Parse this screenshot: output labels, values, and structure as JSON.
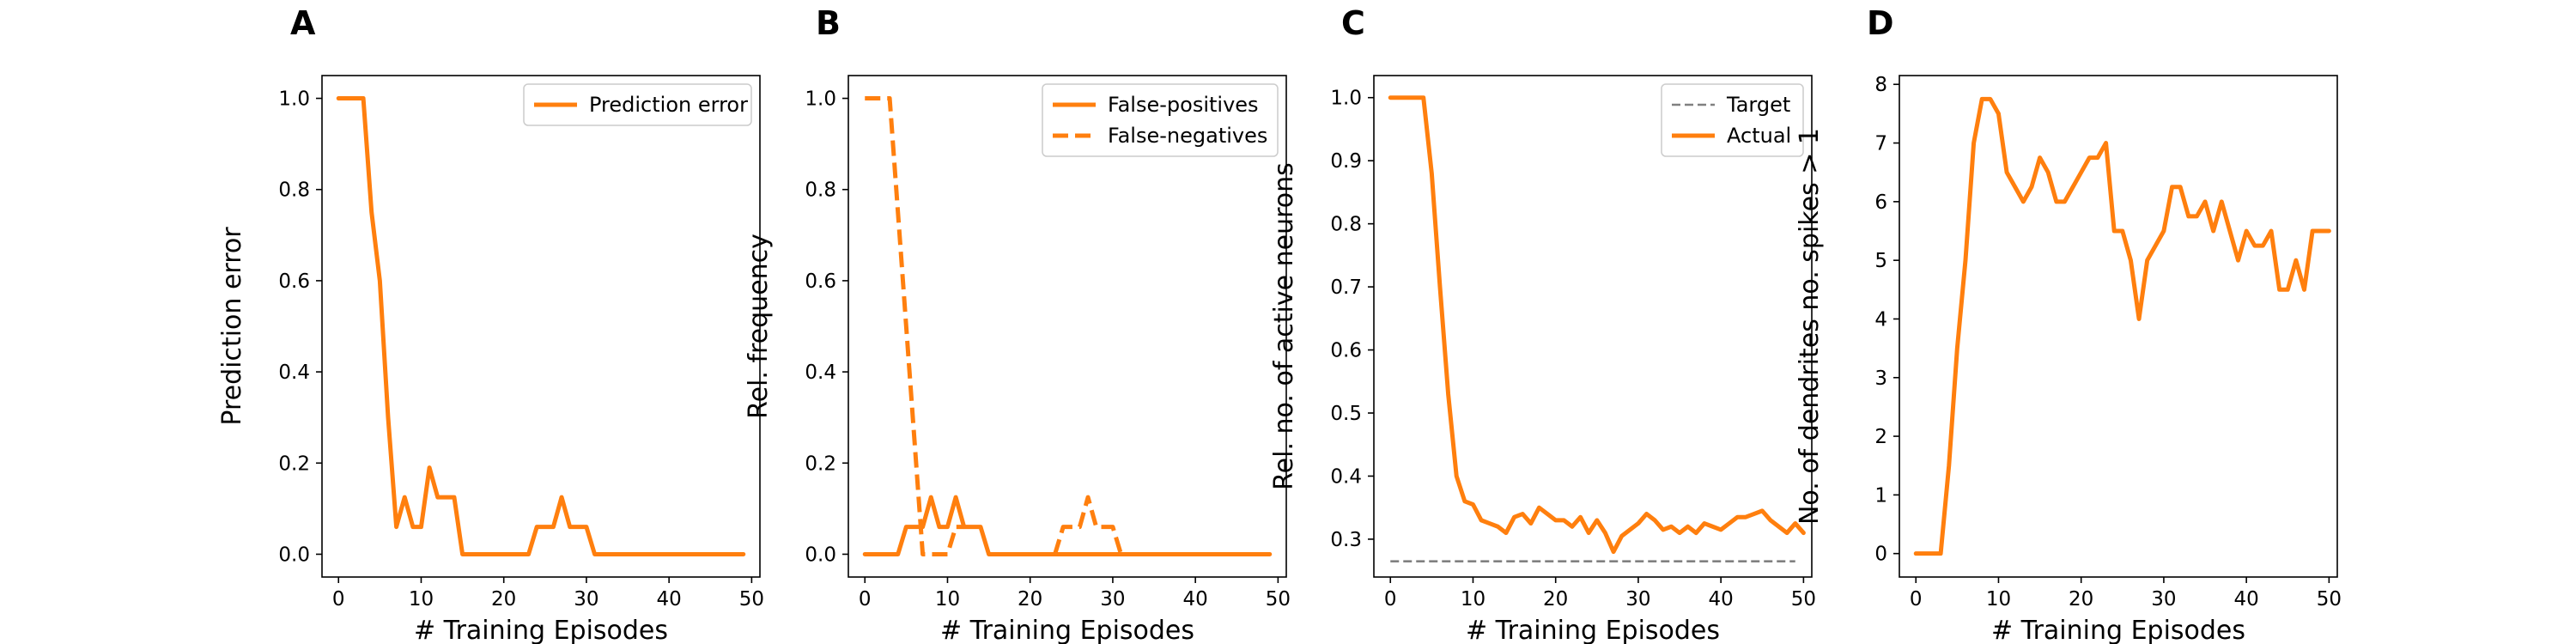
{
  "chart_data": [
    {
      "type": "line",
      "letter": "A",
      "xlabel": "# Training Episodes",
      "ylabel": "Prediction error",
      "xlim": [
        -2,
        51
      ],
      "ylim": [
        -0.05,
        1.05
      ],
      "xticks": [
        0,
        10,
        20,
        30,
        40,
        50
      ],
      "xtick_labels": [
        "0",
        "10",
        "20",
        "30",
        "40",
        "50"
      ],
      "yticks": [
        0,
        0.2,
        0.4,
        0.6,
        0.8,
        1.0
      ],
      "ytick_labels": [
        "0.0",
        "0.2",
        "0.4",
        "0.6",
        "0.8",
        "1.0"
      ],
      "legend": "top-right",
      "series": [
        {
          "name": "Prediction error",
          "style": "solid",
          "color": "#ff7f0e",
          "points": [
            [
              0,
              1
            ],
            [
              1,
              1
            ],
            [
              2,
              1
            ],
            [
              3,
              1
            ],
            [
              4,
              0.75
            ],
            [
              5,
              0.6
            ],
            [
              6,
              0.3
            ],
            [
              7,
              0.06
            ],
            [
              8,
              0.125
            ],
            [
              9,
              0.06
            ],
            [
              10,
              0.06
            ],
            [
              11,
              0.19
            ],
            [
              12,
              0.125
            ],
            [
              13,
              0.125
            ],
            [
              14,
              0.125
            ],
            [
              15,
              0
            ],
            [
              16,
              0
            ],
            [
              17,
              0
            ],
            [
              18,
              0
            ],
            [
              19,
              0
            ],
            [
              20,
              0
            ],
            [
              21,
              0
            ],
            [
              22,
              0
            ],
            [
              23,
              0
            ],
            [
              24,
              0.06
            ],
            [
              25,
              0.06
            ],
            [
              26,
              0.06
            ],
            [
              27,
              0.125
            ],
            [
              28,
              0.06
            ],
            [
              29,
              0.06
            ],
            [
              30,
              0.06
            ],
            [
              31,
              0
            ],
            [
              32,
              0
            ],
            [
              33,
              0
            ],
            [
              34,
              0
            ],
            [
              35,
              0
            ],
            [
              36,
              0
            ],
            [
              37,
              0
            ],
            [
              38,
              0
            ],
            [
              39,
              0
            ],
            [
              40,
              0
            ],
            [
              41,
              0
            ],
            [
              42,
              0
            ],
            [
              43,
              0
            ],
            [
              44,
              0
            ],
            [
              45,
              0
            ],
            [
              46,
              0
            ],
            [
              47,
              0
            ],
            [
              48,
              0
            ],
            [
              49,
              0
            ]
          ]
        }
      ]
    },
    {
      "type": "line",
      "letter": "B",
      "xlabel": "# Training Episodes",
      "ylabel": "Rel. frequency",
      "xlim": [
        -2,
        51
      ],
      "ylim": [
        -0.05,
        1.05
      ],
      "xticks": [
        0,
        10,
        20,
        30,
        40,
        50
      ],
      "xtick_labels": [
        "0",
        "10",
        "20",
        "30",
        "40",
        "50"
      ],
      "yticks": [
        0,
        0.2,
        0.4,
        0.6,
        0.8,
        1.0
      ],
      "ytick_labels": [
        "0.0",
        "0.2",
        "0.4",
        "0.6",
        "0.8",
        "1.0"
      ],
      "legend": "top-right",
      "series": [
        {
          "name": "False-positives",
          "style": "solid",
          "color": "#ff7f0e",
          "points": [
            [
              0,
              0
            ],
            [
              1,
              0
            ],
            [
              2,
              0
            ],
            [
              3,
              0
            ],
            [
              4,
              0
            ],
            [
              5,
              0.06
            ],
            [
              6,
              0.06
            ],
            [
              7,
              0.06
            ],
            [
              8,
              0.125
            ],
            [
              9,
              0.06
            ],
            [
              10,
              0.06
            ],
            [
              11,
              0.125
            ],
            [
              12,
              0.06
            ],
            [
              13,
              0.06
            ],
            [
              14,
              0.06
            ],
            [
              15,
              0
            ],
            [
              16,
              0
            ],
            [
              17,
              0
            ],
            [
              18,
              0
            ],
            [
              19,
              0
            ],
            [
              20,
              0
            ],
            [
              21,
              0
            ],
            [
              22,
              0
            ],
            [
              23,
              0
            ],
            [
              24,
              0
            ],
            [
              25,
              0
            ],
            [
              26,
              0
            ],
            [
              27,
              0
            ],
            [
              28,
              0
            ],
            [
              29,
              0
            ],
            [
              30,
              0
            ],
            [
              31,
              0
            ],
            [
              32,
              0
            ],
            [
              33,
              0
            ],
            [
              34,
              0
            ],
            [
              35,
              0
            ],
            [
              36,
              0
            ],
            [
              37,
              0
            ],
            [
              38,
              0
            ],
            [
              39,
              0
            ],
            [
              40,
              0
            ],
            [
              41,
              0
            ],
            [
              42,
              0
            ],
            [
              43,
              0
            ],
            [
              44,
              0
            ],
            [
              45,
              0
            ],
            [
              46,
              0
            ],
            [
              47,
              0
            ],
            [
              48,
              0
            ],
            [
              49,
              0
            ]
          ]
        },
        {
          "name": "False-negatives",
          "style": "dashed",
          "color": "#ff7f0e",
          "points": [
            [
              0,
              1
            ],
            [
              1,
              1
            ],
            [
              2,
              1
            ],
            [
              3,
              1
            ],
            [
              4,
              0.75
            ],
            [
              5,
              0.5
            ],
            [
              6,
              0.25
            ],
            [
              7,
              0
            ],
            [
              8,
              0
            ],
            [
              9,
              0
            ],
            [
              10,
              0
            ],
            [
              11,
              0.06
            ],
            [
              12,
              0.06
            ]
          ],
          "segments": [
            [
              23,
              0
            ],
            [
              24,
              0.06
            ],
            [
              25,
              0.06
            ],
            [
              26,
              0.06
            ],
            [
              27,
              0.125
            ],
            [
              28,
              0.06
            ],
            [
              29,
              0.06
            ],
            [
              30,
              0.06
            ],
            [
              31,
              0
            ]
          ]
        }
      ]
    },
    {
      "type": "line",
      "letter": "C",
      "xlabel": "# Training Episodes",
      "ylabel": "Rel. no. of active neurons",
      "xlim": [
        -2,
        51
      ],
      "ylim": [
        0.24,
        1.035
      ],
      "xticks": [
        0,
        10,
        20,
        30,
        40,
        50
      ],
      "xtick_labels": [
        "0",
        "10",
        "20",
        "30",
        "40",
        "50"
      ],
      "yticks": [
        0.3,
        0.4,
        0.5,
        0.6,
        0.7,
        0.8,
        0.9,
        1.0
      ],
      "ytick_labels": [
        "0.3",
        "0.4",
        "0.5",
        "0.6",
        "0.7",
        "0.8",
        "0.9",
        "1.0"
      ],
      "legend": "top-right",
      "series": [
        {
          "name": "Target",
          "style": "dashed-thin",
          "color": "#808080",
          "points": [
            [
              0,
              0.265
            ],
            [
              49,
              0.265
            ]
          ]
        },
        {
          "name": "Actual",
          "style": "solid",
          "color": "#ff7f0e",
          "points": [
            [
              0,
              1
            ],
            [
              1,
              1
            ],
            [
              2,
              1
            ],
            [
              3,
              1
            ],
            [
              4,
              1
            ],
            [
              5,
              0.88
            ],
            [
              6,
              0.7
            ],
            [
              7,
              0.53
            ],
            [
              8,
              0.4
            ],
            [
              9,
              0.36
            ],
            [
              10,
              0.355
            ],
            [
              11,
              0.33
            ],
            [
              12,
              0.325
            ],
            [
              13,
              0.32
            ],
            [
              14,
              0.31
            ],
            [
              15,
              0.335
            ],
            [
              16,
              0.34
            ],
            [
              17,
              0.325
            ],
            [
              18,
              0.35
            ],
            [
              19,
              0.34
            ],
            [
              20,
              0.33
            ],
            [
              21,
              0.33
            ],
            [
              22,
              0.32
            ],
            [
              23,
              0.335
            ],
            [
              24,
              0.31
            ],
            [
              25,
              0.33
            ],
            [
              26,
              0.31
            ],
            [
              27,
              0.28
            ],
            [
              28,
              0.305
            ],
            [
              29,
              0.315
            ],
            [
              30,
              0.325
            ],
            [
              31,
              0.34
            ],
            [
              32,
              0.33
            ],
            [
              33,
              0.315
            ],
            [
              34,
              0.32
            ],
            [
              35,
              0.31
            ],
            [
              36,
              0.32
            ],
            [
              37,
              0.31
            ],
            [
              38,
              0.325
            ],
            [
              39,
              0.32
            ],
            [
              40,
              0.315
            ],
            [
              41,
              0.325
            ],
            [
              42,
              0.335
            ],
            [
              43,
              0.335
            ],
            [
              44,
              0.34
            ],
            [
              45,
              0.345
            ],
            [
              46,
              0.33
            ],
            [
              47,
              0.32
            ],
            [
              48,
              0.31
            ],
            [
              49,
              0.325
            ],
            [
              50,
              0.31
            ]
          ]
        }
      ]
    },
    {
      "type": "line",
      "letter": "D",
      "xlabel": "# Training Episodes",
      "ylabel": "No. of dendrites no. spikes > 1",
      "xlim": [
        -2,
        51
      ],
      "ylim": [
        -0.4,
        8.15
      ],
      "xticks": [
        0,
        10,
        20,
        30,
        40,
        50
      ],
      "xtick_labels": [
        "0",
        "10",
        "20",
        "30",
        "40",
        "50"
      ],
      "yticks": [
        0,
        1,
        2,
        3,
        4,
        5,
        6,
        7,
        8
      ],
      "ytick_labels": [
        "0",
        "1",
        "2",
        "3",
        "4",
        "5",
        "6",
        "7",
        "8"
      ],
      "legend": "none",
      "series": [
        {
          "name": "",
          "style": "solid",
          "color": "#ff7f0e",
          "points": [
            [
              0,
              0
            ],
            [
              1,
              0
            ],
            [
              2,
              0
            ],
            [
              3,
              0
            ],
            [
              4,
              1.5
            ],
            [
              5,
              3.5
            ],
            [
              6,
              5
            ],
            [
              7,
              7
            ],
            [
              8,
              7.75
            ],
            [
              9,
              7.75
            ],
            [
              10,
              7.5
            ],
            [
              11,
              6.5
            ],
            [
              12,
              6.25
            ],
            [
              13,
              6
            ],
            [
              14,
              6.25
            ],
            [
              15,
              6.75
            ],
            [
              16,
              6.5
            ],
            [
              17,
              6
            ],
            [
              18,
              6
            ],
            [
              19,
              6.25
            ],
            [
              20,
              6.5
            ],
            [
              21,
              6.75
            ],
            [
              22,
              6.75
            ],
            [
              23,
              7
            ],
            [
              24,
              5.5
            ],
            [
              25,
              5.5
            ],
            [
              26,
              5
            ],
            [
              27,
              4
            ],
            [
              28,
              5
            ],
            [
              29,
              5.25
            ],
            [
              30,
              5.5
            ],
            [
              31,
              6.25
            ],
            [
              32,
              6.25
            ],
            [
              33,
              5.75
            ],
            [
              34,
              5.75
            ],
            [
              35,
              6
            ],
            [
              36,
              5.5
            ],
            [
              37,
              6
            ],
            [
              38,
              5.5
            ],
            [
              39,
              5
            ],
            [
              40,
              5.5
            ],
            [
              41,
              5.25
            ],
            [
              42,
              5.25
            ],
            [
              43,
              5.5
            ],
            [
              44,
              4.5
            ],
            [
              45,
              4.5
            ],
            [
              46,
              5
            ],
            [
              47,
              4.5
            ],
            [
              48,
              5.5
            ],
            [
              49,
              5.5
            ],
            [
              50,
              5.5
            ]
          ]
        }
      ]
    }
  ]
}
